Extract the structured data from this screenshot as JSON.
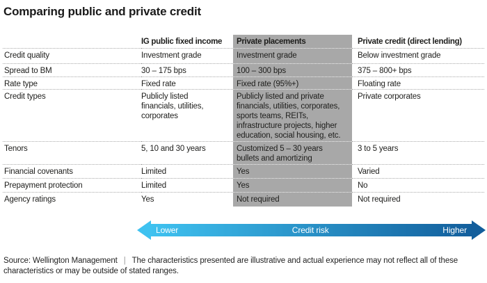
{
  "title": "Comparing public and private credit",
  "chart_data": {
    "type": "table",
    "title": "Comparing public and private credit",
    "columns": [
      "",
      "IG public fixed income",
      "Private placements",
      "Private credit (direct lending)"
    ],
    "highlighted_column": "Private placements",
    "highlight_color": "#a8a8a8",
    "rows": [
      [
        "Credit quality",
        "Investment grade",
        "Investment grade",
        "Below investment grade"
      ],
      [
        "Spread to BM",
        "30 – 175 bps",
        "100 – 300 bps",
        "375 – 800+ bps"
      ],
      [
        "Rate type",
        "Fixed rate",
        "Fixed rate (95%+)",
        "Floating rate"
      ],
      [
        "Credit types",
        "Publicly listed\nfinancials, utilities,\ncorporates",
        "Publicly listed and private\nfinancials, utilities, corporates,\nsports teams, REITs,\ninfrastructure projects, higher\neducation, social housing, etc.",
        "Private corporates"
      ],
      [
        "Tenors",
        "5, 10 and 30 years",
        "Customized 5 – 30 years\nbullets and amortizing",
        "3 to 5 years"
      ],
      [
        "Financial covenants",
        "Limited",
        "Yes",
        "Varied"
      ],
      [
        "Prepayment protection",
        "Limited",
        "Yes",
        "No"
      ],
      [
        "Agency ratings",
        "Yes",
        "Not required",
        "Not required"
      ]
    ]
  },
  "arrow": {
    "left_label": "Lower",
    "center_label": "Credit risk",
    "right_label": "Higher",
    "start_color": "#3fc2f0",
    "end_color": "#125e9c"
  },
  "footnote": {
    "source": "Source: Wellington Management",
    "separator": "|",
    "text": "The characteristics presented are illustrative and actual experience may not reflect all of these characteristics or may be outside of stated ranges."
  }
}
